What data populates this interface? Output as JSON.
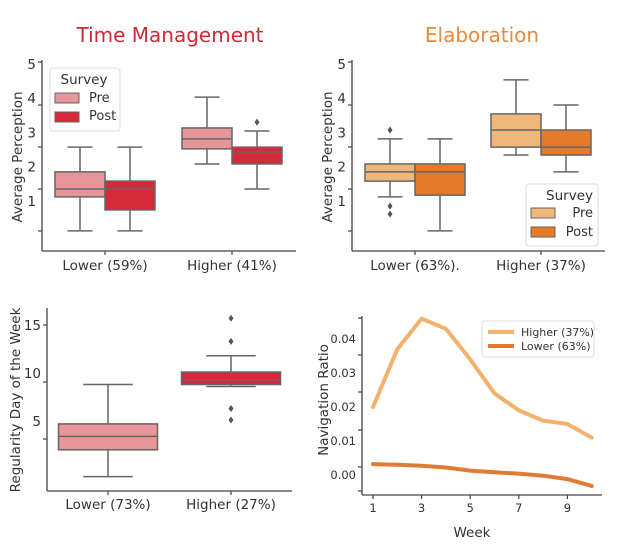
{
  "colors": {
    "tm_pre": "#e8959a",
    "tm_post": "#d42a3a",
    "el_pre": "#f0b878",
    "el_post": "#e57a2a",
    "line_higher": "#f2b26e",
    "line_lower": "#e07b35",
    "tm_title": "#cf2a36",
    "el_title": "#e8893c",
    "axis": "#444444",
    "box_edge": "#666666"
  },
  "chart_data": [
    {
      "type": "box",
      "title": "Time Management",
      "ylabel": "Average Perception",
      "xlabel": "",
      "ytick_labels": [
        "5",
        "4",
        "3",
        "2",
        "1"
      ],
      "ytick_values": [
        5,
        4,
        3,
        2,
        1
      ],
      "categories": [
        "Lower (59%)",
        "Higher (41%)"
      ],
      "legend": {
        "title": "Survey",
        "entries": [
          "Pre",
          "Post"
        ],
        "placement": "upper-left"
      },
      "series": [
        {
          "name": "Pre",
          "boxes": [
            {
              "low": 0.13,
              "q1": 1.12,
              "median": 1.35,
              "q3": 1.85,
              "high": 2.57,
              "outliers": []
            },
            {
              "low": 2.08,
              "q1": 2.52,
              "median": 2.81,
              "q3": 3.13,
              "high": 4.03,
              "outliers": []
            }
          ]
        },
        {
          "name": "Post",
          "boxes": [
            {
              "low": 0.13,
              "q1": 0.74,
              "median": 1.35,
              "q3": 1.58,
              "high": 2.57,
              "outliers": []
            },
            {
              "low": 1.35,
              "q1": 2.08,
              "median": 2.43,
              "q3": 2.57,
              "high": 3.04,
              "outliers": [
                3.3
              ]
            }
          ]
        }
      ]
    },
    {
      "type": "box",
      "title": "Elaboration",
      "ylabel": "Average Perception",
      "xlabel": "",
      "ytick_labels": [
        "5",
        "4",
        "3",
        "2",
        "1"
      ],
      "ytick_values": [
        5,
        4,
        3,
        2,
        1
      ],
      "categories": [
        "Lower (63%).",
        "Higher (37%)"
      ],
      "legend": {
        "title": "Survey",
        "entries": [
          "Pre",
          "Post"
        ],
        "placement": "lower-right"
      },
      "series": [
        {
          "name": "Pre",
          "boxes": [
            {
              "low": 1.12,
              "q1": 1.58,
              "median": 1.85,
              "q3": 2.08,
              "high": 2.81,
              "outliers": [
                3.07,
                0.85,
                0.62
              ]
            },
            {
              "low": 2.34,
              "q1": 2.57,
              "median": 3.07,
              "q3": 3.54,
              "high": 4.53,
              "outliers": []
            }
          ]
        },
        {
          "name": "Post",
          "boxes": [
            {
              "low": 0.13,
              "q1": 1.17,
              "median": 1.85,
              "q3": 2.08,
              "high": 2.81,
              "outliers": []
            },
            {
              "low": 1.85,
              "q1": 2.34,
              "median": 2.57,
              "q3": 3.07,
              "high": 3.8,
              "outliers": []
            }
          ]
        }
      ]
    },
    {
      "type": "box",
      "title": "",
      "ylabel": "Regularity Day of the Week",
      "xlabel": "",
      "ytick_labels": [
        "15",
        "10",
        "5"
      ],
      "ytick_values": [
        15,
        10,
        5
      ],
      "categories": [
        "Lower (73%)",
        "Higher (27%)"
      ],
      "boxes": [
        {
          "low": -0.8,
          "q1": 2.0,
          "median": 3.4,
          "q3": 4.7,
          "high": 8.8,
          "outliers": [],
          "color_key": "tm_pre"
        },
        {
          "low": 8.6,
          "q1": 8.8,
          "median": 9.3,
          "q3": 10.1,
          "high": 11.8,
          "outliers": [
            15.7,
            13.3,
            6.3,
            5.1
          ],
          "color_key": "tm_post"
        }
      ]
    },
    {
      "type": "line",
      "title": "",
      "xlabel": "Week",
      "ylabel": "Navigation Ratio",
      "xtick_labels": [
        "1",
        "3",
        "5",
        "7",
        "9"
      ],
      "xtick_values": [
        1,
        3,
        5,
        7,
        9
      ],
      "ytick_labels": [
        "0.04",
        "0.03",
        "0.02",
        "0.01",
        "0.00"
      ],
      "ytick_values": [
        0.04,
        0.03,
        0.02,
        0.01,
        0.0
      ],
      "x": [
        1,
        2,
        3,
        4,
        5,
        6,
        7,
        8,
        9,
        10
      ],
      "legend": {
        "placement": "upper-right"
      },
      "series": [
        {
          "name": "Higher (37%)",
          "color_key": "line_higher",
          "values": [
            0.02,
            0.037,
            0.046,
            0.043,
            0.034,
            0.024,
            0.019,
            0.016,
            0.015,
            0.011
          ]
        },
        {
          "name": "Lower (63%)",
          "color_key": "line_lower",
          "values": [
            0.0032,
            0.003,
            0.0027,
            0.0022,
            0.0013,
            0.0008,
            0.0004,
            -0.0002,
            -0.0012,
            -0.0032
          ]
        }
      ]
    }
  ]
}
